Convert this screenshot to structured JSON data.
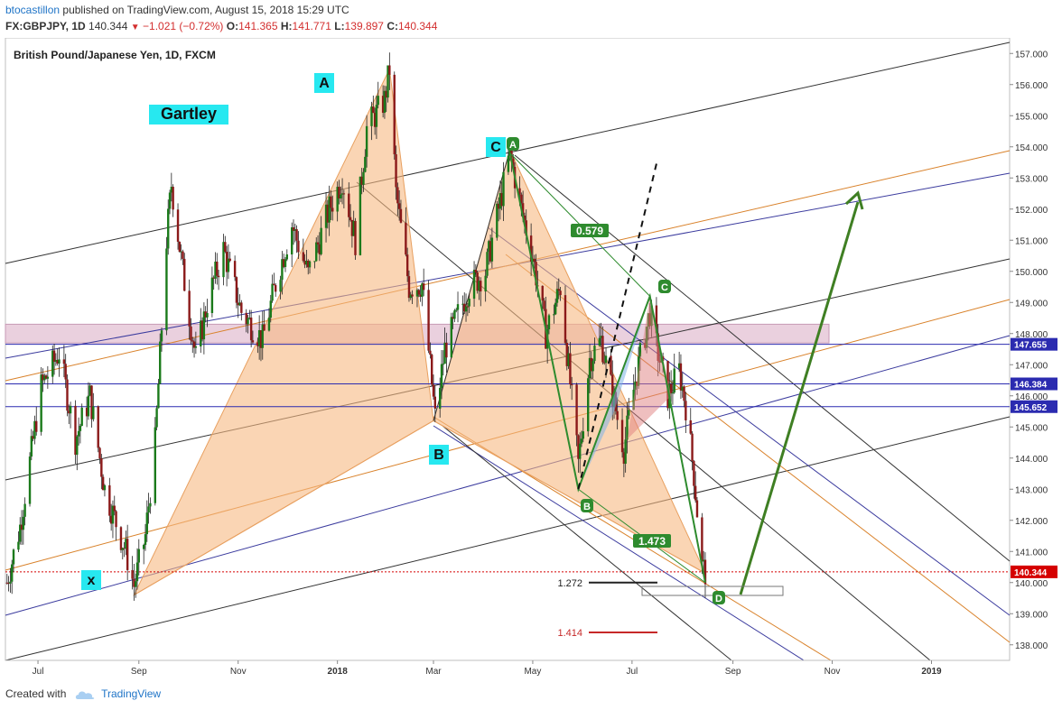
{
  "header": {
    "user": "btocastillon",
    "published": "published on TradingView.com, August 15, 2018 15:29 UTC",
    "symbol": "FX:GBPJPY, 1D",
    "last": "140.344",
    "change": "−1.021 (−0.72%)",
    "o_label": "O:",
    "o_val": "141.365",
    "h_label": "H:",
    "h_val": "141.771",
    "l_label": "L:",
    "l_val": "139.897",
    "c_label": "C:",
    "c_val": "140.344"
  },
  "footer": {
    "created": "Created with",
    "brand": "TradingView"
  },
  "chart_data": {
    "type": "candlestick",
    "title": "British Pound/Japanese Yen, 1D, FXCM",
    "ylim": [
      137.5,
      157.5
    ],
    "yticks": [
      138,
      139,
      140,
      141,
      142,
      143,
      144,
      145,
      146,
      147,
      148,
      149,
      150,
      151,
      152,
      153,
      154,
      155,
      156,
      157
    ],
    "xlim": [
      "2017-06-11",
      "2019-02-18"
    ],
    "xticks": [
      {
        "label": "Jul",
        "date": "2017-07-01"
      },
      {
        "label": "Sep",
        "date": "2017-09-01"
      },
      {
        "label": "Nov",
        "date": "2017-11-01"
      },
      {
        "label": "2018",
        "date": "2018-01-01",
        "bold": true
      },
      {
        "label": "Mar",
        "date": "2018-03-01"
      },
      {
        "label": "May",
        "date": "2018-05-01"
      },
      {
        "label": "Jul",
        "date": "2018-07-01"
      },
      {
        "label": "Sep",
        "date": "2018-09-01"
      },
      {
        "label": "Nov",
        "date": "2018-11-01"
      },
      {
        "label": "2019",
        "date": "2019-01-01",
        "bold": true
      }
    ],
    "price_path": [
      [
        "2017-06-12",
        140.0
      ],
      [
        "2017-06-20",
        141.8
      ],
      [
        "2017-07-03",
        146.3
      ],
      [
        "2017-07-14",
        147.4
      ],
      [
        "2017-07-24",
        144.6
      ],
      [
        "2017-08-02",
        146.0
      ],
      [
        "2017-08-11",
        143.0
      ],
      [
        "2017-08-24",
        141.0
      ],
      [
        "2017-08-29",
        139.9
      ],
      [
        "2017-09-05",
        141.5
      ],
      [
        "2017-09-11",
        144.5
      ],
      [
        "2017-09-18",
        151.0
      ],
      [
        "2017-09-21",
        152.8
      ],
      [
        "2017-09-28",
        150.0
      ],
      [
        "2017-10-06",
        147.2
      ],
      [
        "2017-10-13",
        149.0
      ],
      [
        "2017-10-23",
        150.7
      ],
      [
        "2017-11-03",
        148.7
      ],
      [
        "2017-11-16",
        147.8
      ],
      [
        "2017-11-24",
        149.6
      ],
      [
        "2017-12-04",
        151.5
      ],
      [
        "2017-12-14",
        149.9
      ],
      [
        "2017-12-27",
        152.0
      ],
      [
        "2018-01-04",
        153.0
      ],
      [
        "2018-01-12",
        151.0
      ],
      [
        "2018-01-19",
        154.6
      ],
      [
        "2018-01-30",
        155.5
      ],
      [
        "2018-02-02",
        156.5
      ],
      [
        "2018-02-06",
        152.5
      ],
      [
        "2018-02-14",
        149.5
      ],
      [
        "2018-02-22",
        149.6
      ],
      [
        "2018-03-02",
        145.3
      ],
      [
        "2018-03-08",
        147.5
      ],
      [
        "2018-03-16",
        148.6
      ],
      [
        "2018-03-23",
        149.5
      ],
      [
        "2018-04-02",
        150.0
      ],
      [
        "2018-04-12",
        152.5
      ],
      [
        "2018-04-17",
        153.8
      ],
      [
        "2018-04-24",
        152.0
      ],
      [
        "2018-05-01",
        150.5
      ],
      [
        "2018-05-09",
        148.0
      ],
      [
        "2018-05-18",
        149.5
      ],
      [
        "2018-05-29",
        143.8
      ],
      [
        "2018-06-05",
        147.2
      ],
      [
        "2018-06-12",
        147.8
      ],
      [
        "2018-06-20",
        145.8
      ],
      [
        "2018-06-26",
        144.3
      ],
      [
        "2018-07-03",
        146.5
      ],
      [
        "2018-07-12",
        148.7
      ],
      [
        "2018-07-16",
        147.6
      ],
      [
        "2018-07-23",
        146.0
      ],
      [
        "2018-07-30",
        146.8
      ],
      [
        "2018-08-03",
        145.7
      ],
      [
        "2018-08-08",
        143.5
      ],
      [
        "2018-08-13",
        140.5
      ],
      [
        "2018-08-15",
        140.344
      ]
    ],
    "horizontal_levels": [
      {
        "label": "147.655",
        "value": 147.655,
        "color": "#2b2bb0"
      },
      {
        "label": "146.384",
        "value": 146.384,
        "color": "#2b2bb0"
      },
      {
        "label": "145.652",
        "value": 145.652,
        "color": "#2b2bb0"
      },
      {
        "label": "140.344",
        "value": 140.344,
        "color": "#d50000",
        "dotted": true
      }
    ],
    "zone": {
      "from": 147.7,
      "to": 148.3,
      "color": "#e6c8d8"
    },
    "patterns": {
      "big_gartley": {
        "name": "Gartley",
        "X": 139.6,
        "A": 156.5,
        "B": 145.2,
        "C": 153.9,
        "D": 140.3
      },
      "small_gartley": {
        "A": 153.8,
        "B": 143.0,
        "C": 149.2,
        "D": 140.0
      }
    },
    "ratios": [
      "0.579",
      "1.473"
    ],
    "extensions": [
      {
        "label": "1.272",
        "value": 140.0,
        "color": "#222"
      },
      {
        "label": "1.414",
        "value": 138.4,
        "color": "#c62828"
      }
    ],
    "labels": {
      "x": "x",
      "A": "A",
      "B": "B",
      "C": "C",
      "sA": "A",
      "sB": "B",
      "sC": "C",
      "sD": "D"
    }
  }
}
